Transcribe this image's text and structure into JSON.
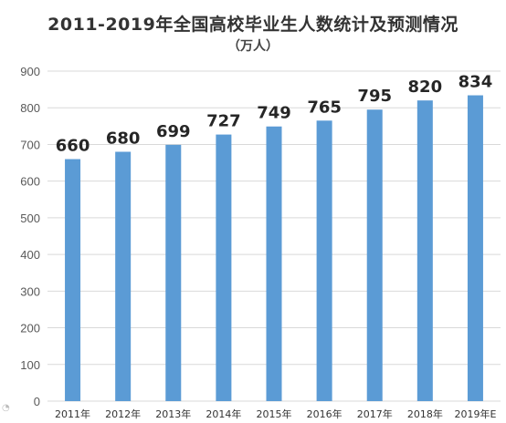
{
  "chart_data": {
    "type": "bar",
    "title": "2011-2019年全国高校毕业生人数统计及预测情况",
    "subtitle": "（万人）",
    "categories": [
      "2011年",
      "2012年",
      "2013年",
      "2014年",
      "2015年",
      "2016年",
      "2017年",
      "2018年",
      "2019年E"
    ],
    "values": [
      660,
      680,
      699,
      727,
      749,
      765,
      795,
      820,
      834
    ],
    "data_labels": [
      "660",
      "680",
      "699",
      "727",
      "749",
      "765",
      "795",
      "820",
      "834"
    ],
    "ylim": [
      0,
      900
    ],
    "yticks": [
      "0",
      "100",
      "200",
      "300",
      "400",
      "500",
      "600",
      "700",
      "800",
      "900"
    ],
    "grid": true,
    "legend": "none",
    "colors": {
      "bar": "#5b9bd5",
      "grid": "#d9d9d9",
      "tick_text": "#595959",
      "label_text": "#262626"
    }
  }
}
